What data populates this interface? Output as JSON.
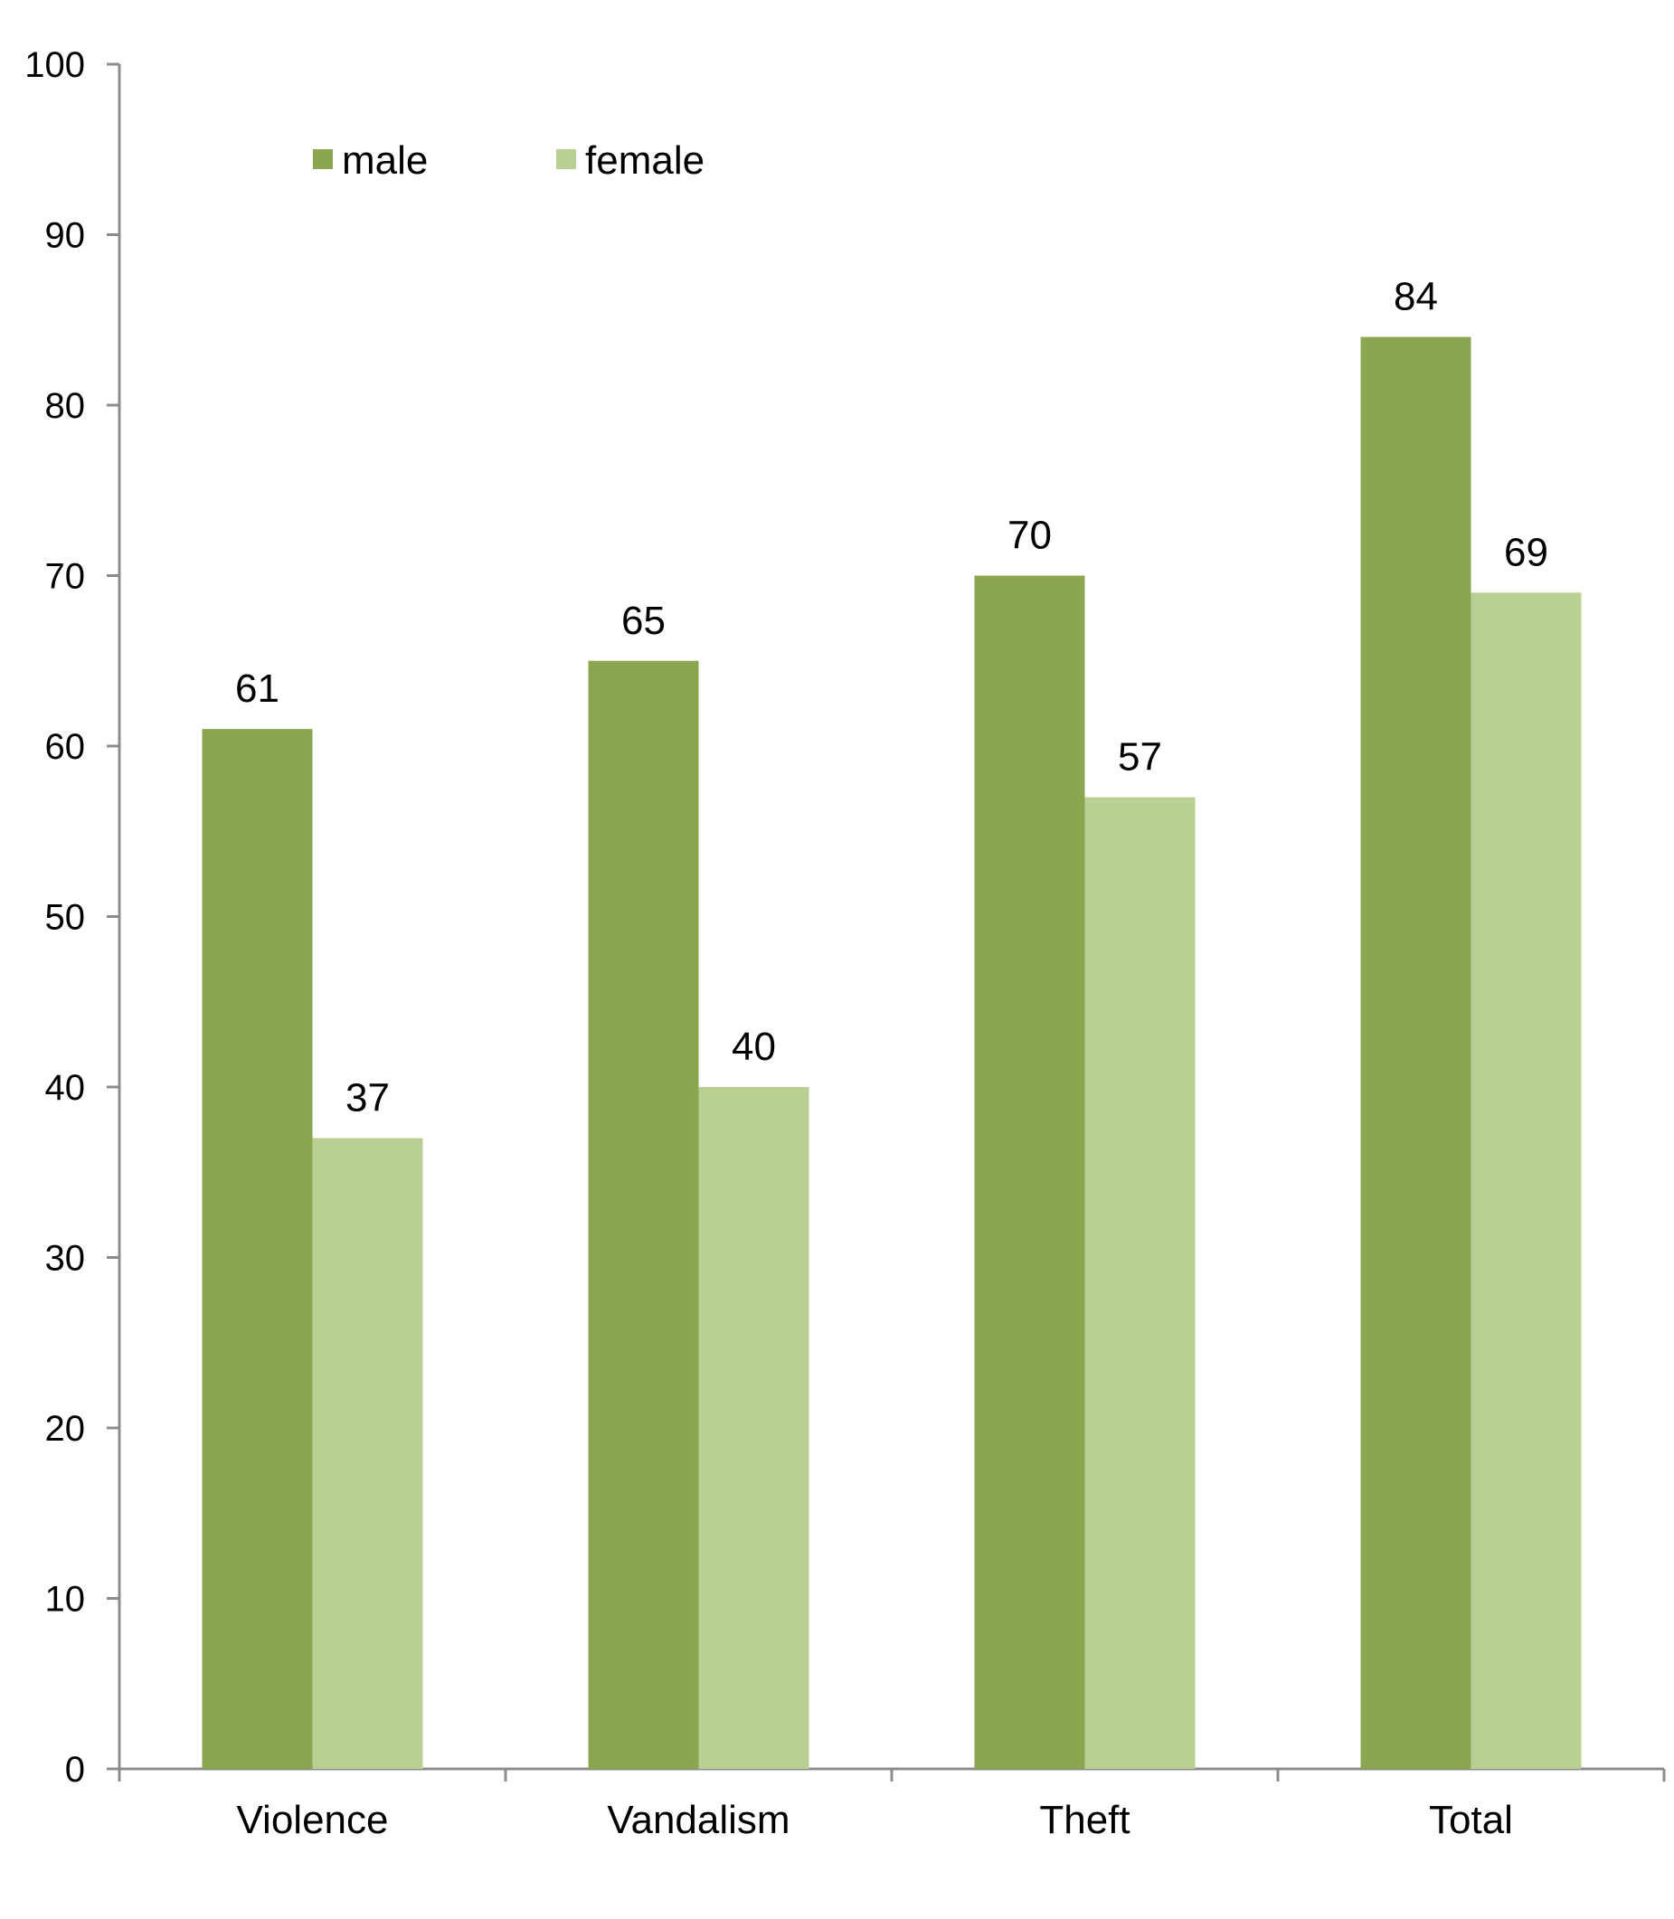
{
  "chart_data": {
    "type": "bar",
    "title": "",
    "xlabel": "",
    "ylabel": "",
    "categories": [
      "Violence",
      "Vandalism",
      "Theft",
      "Total"
    ],
    "series": [
      {
        "name": "male",
        "color": "#8aa64e",
        "values": [
          61,
          65,
          70,
          84
        ]
      },
      {
        "name": "female",
        "color": "#b9cf94",
        "values": [
          37,
          40,
          57,
          69
        ]
      }
    ],
    "ylim": [
      0,
      100
    ],
    "yticks": [
      0,
      10,
      20,
      30,
      40,
      50,
      60,
      70,
      80,
      90,
      100
    ],
    "grid": false,
    "legend_position": "top-left",
    "data_labels": true
  }
}
